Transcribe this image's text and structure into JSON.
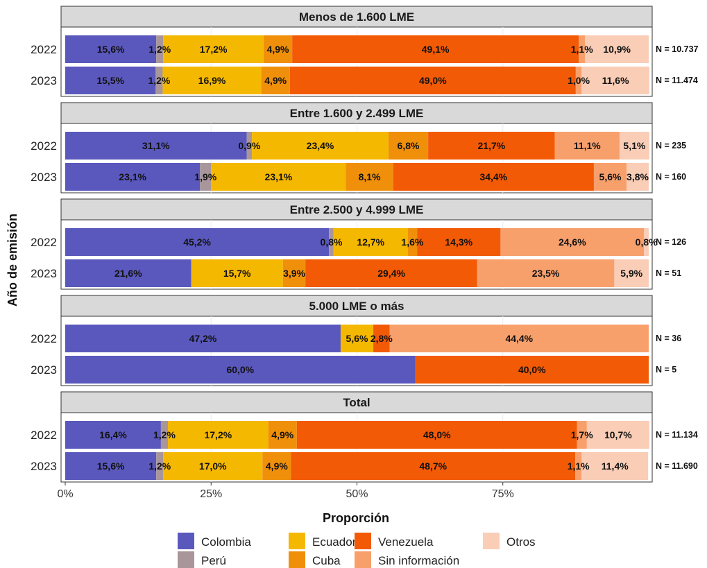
{
  "chart_data": {
    "type": "bar",
    "orientation": "horizontal",
    "stacked": true,
    "xlabel": "Proporción",
    "ylabel": "Año de emisión",
    "xlim": [
      0,
      1
    ],
    "xticks": [
      {
        "value": 0,
        "label": "0%"
      },
      {
        "value": 0.25,
        "label": "25%"
      },
      {
        "value": 0.5,
        "label": "50%"
      },
      {
        "value": 0.75,
        "label": "75%"
      }
    ],
    "legend_position": "bottom",
    "series": [
      {
        "name": "Colombia",
        "color": "#5a58bd"
      },
      {
        "name": "Perú",
        "color": "#a8969b"
      },
      {
        "name": "Ecuador",
        "color": "#f5b800"
      },
      {
        "name": "Cuba",
        "color": "#f0900a"
      },
      {
        "name": "Venezuela",
        "color": "#f25a05"
      },
      {
        "name": "Sin información",
        "color": "#f8a06c"
      },
      {
        "name": "Otros",
        "color": "#f9cdb6"
      }
    ],
    "legend_order": [
      "Colombia",
      "Ecuador",
      "Venezuela",
      "Otros",
      "Perú",
      "Cuba",
      "Sin información"
    ],
    "panels": [
      {
        "title": "Menos de 1.600 LME",
        "rows": [
          {
            "year": "2022",
            "n": "N = 10.737",
            "values": {
              "Colombia": 15.6,
              "Perú": 1.2,
              "Ecuador": 17.2,
              "Cuba": 4.9,
              "Venezuela": 49.1,
              "Sin información": 1.1,
              "Otros": 10.9
            },
            "labels": {
              "Colombia": "15,6%",
              "Perú": "1,2%",
              "Ecuador": "17,2%",
              "Cuba": "4,9%",
              "Venezuela": "49,1%",
              "Sin información": "1,1%",
              "Otros": "10,9%"
            }
          },
          {
            "year": "2023",
            "n": "N = 11.474",
            "values": {
              "Colombia": 15.5,
              "Perú": 1.2,
              "Ecuador": 16.9,
              "Cuba": 4.9,
              "Venezuela": 49.0,
              "Sin información": 1.0,
              "Otros": 11.6
            },
            "labels": {
              "Colombia": "15,5%",
              "Perú": "1,2%",
              "Ecuador": "16,9%",
              "Cuba": "4,9%",
              "Venezuela": "49,0%",
              "Sin información": "1,0%",
              "Otros": "11,6%"
            }
          }
        ]
      },
      {
        "title": "Entre 1.600 y 2.499 LME",
        "rows": [
          {
            "year": "2022",
            "n": "N = 235",
            "values": {
              "Colombia": 31.1,
              "Perú": 0.9,
              "Ecuador": 23.4,
              "Cuba": 6.8,
              "Venezuela": 21.7,
              "Sin información": 11.1,
              "Otros": 5.1
            },
            "labels": {
              "Colombia": "31,1%",
              "Perú": "0,9%",
              "Ecuador": "23,4%",
              "Cuba": "6,8%",
              "Venezuela": "21,7%",
              "Sin información": "11,1%",
              "Otros": "5,1%"
            }
          },
          {
            "year": "2023",
            "n": "N = 160",
            "values": {
              "Colombia": 23.1,
              "Perú": 1.9,
              "Ecuador": 23.1,
              "Cuba": 8.1,
              "Venezuela": 34.4,
              "Sin información": 5.6,
              "Otros": 3.8
            },
            "labels": {
              "Colombia": "23,1%",
              "Perú": "1,9%",
              "Ecuador": "23,1%",
              "Cuba": "8,1%",
              "Venezuela": "34,4%",
              "Sin información": "5,6%",
              "Otros": "3,8%"
            }
          }
        ]
      },
      {
        "title": "Entre 2.500 y 4.999 LME",
        "rows": [
          {
            "year": "2022",
            "n": "N = 126",
            "values": {
              "Colombia": 45.2,
              "Perú": 0.8,
              "Ecuador": 12.7,
              "Cuba": 1.6,
              "Venezuela": 14.3,
              "Sin información": 24.6,
              "Otros": 0.8
            },
            "labels": {
              "Colombia": "45,2%",
              "Perú": "0,8%",
              "Ecuador": "12,7%",
              "Cuba": "1,6%",
              "Venezuela": "14,3%",
              "Sin información": "24,6%",
              "Otros": "0,8%"
            }
          },
          {
            "year": "2023",
            "n": "N = 51",
            "values": {
              "Colombia": 21.6,
              "Ecuador": 15.7,
              "Cuba": 3.9,
              "Venezuela": 29.4,
              "Sin información": 23.5,
              "Otros": 5.9
            },
            "labels": {
              "Colombia": "21,6%",
              "Ecuador": "15,7%",
              "Cuba": "3,9%",
              "Venezuela": "29,4%",
              "Sin información": "23,5%",
              "Otros": "5,9%"
            }
          }
        ]
      },
      {
        "title": "5.000 LME o más",
        "rows": [
          {
            "year": "2022",
            "n": "N = 36",
            "values": {
              "Colombia": 47.2,
              "Ecuador": 5.6,
              "Venezuela": 2.8,
              "Sin información": 44.4
            },
            "labels": {
              "Colombia": "47,2%",
              "Ecuador": "5,6%",
              "Venezuela": "2,8%",
              "Sin información": "44,4%"
            }
          },
          {
            "year": "2023",
            "n": "N = 5",
            "values": {
              "Colombia": 60.0,
              "Venezuela": 40.0
            },
            "labels": {
              "Colombia": "60,0%",
              "Venezuela": "40,0%"
            }
          }
        ]
      },
      {
        "title": "Total",
        "rows": [
          {
            "year": "2022",
            "n": "N = 11.134",
            "values": {
              "Colombia": 16.4,
              "Perú": 1.2,
              "Ecuador": 17.2,
              "Cuba": 4.9,
              "Venezuela": 48.0,
              "Sin información": 1.7,
              "Otros": 10.7
            },
            "labels": {
              "Colombia": "16,4%",
              "Perú": "1,2%",
              "Ecuador": "17,2%",
              "Cuba": "4,9%",
              "Venezuela": "48,0%",
              "Sin información": "1,7%",
              "Otros": "10,7%"
            }
          },
          {
            "year": "2023",
            "n": "N = 11.690",
            "values": {
              "Colombia": 15.6,
              "Perú": 1.2,
              "Ecuador": 17.0,
              "Cuba": 4.9,
              "Venezuela": 48.7,
              "Sin información": 1.1,
              "Otros": 11.4
            },
            "labels": {
              "Colombia": "15,6%",
              "Perú": "1,2%",
              "Ecuador": "17,0%",
              "Cuba": "4,9%",
              "Venezuela": "48,7%",
              "Sin información": "1,1%",
              "Otros": "11,4%"
            }
          }
        ]
      }
    ]
  }
}
